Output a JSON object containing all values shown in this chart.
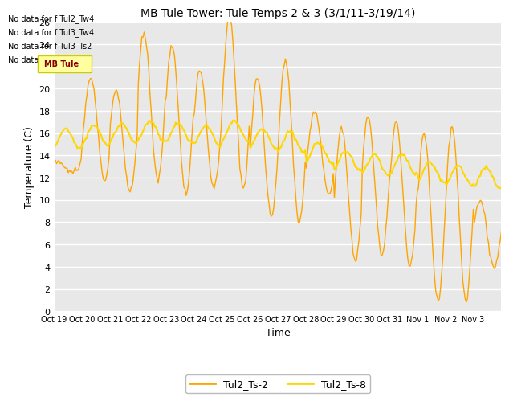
{
  "title": "MB Tule Tower: Tule Temps 2 & 3 (3/1/11-3/19/14)",
  "xlabel": "Time",
  "ylabel": "Temperature (C)",
  "ylim": [
    0,
    26
  ],
  "yticks": [
    0,
    2,
    4,
    6,
    8,
    10,
    12,
    14,
    16,
    18,
    20,
    22,
    24,
    26
  ],
  "x_labels": [
    "Oct 19",
    "Oct 20",
    "Oct 21",
    "Oct 22",
    "Oct 23",
    "Oct 24",
    "Oct 25",
    "Oct 26",
    "Oct 27",
    "Oct 28",
    "Oct 29",
    "Oct 30",
    "Oct 31",
    "Nov 1",
    "Nov 2",
    "Nov 3"
  ],
  "color_ts2": "#FFA500",
  "color_ts8": "#FFD700",
  "legend_labels": [
    "Tul2_Ts-2",
    "Tul2_Ts-8"
  ],
  "no_data_text": [
    "No data for f Tul2_Tw4",
    "No data for f Tul3_Tw4",
    "No data for f Tul3_Ts2",
    "No data for f Tul3_Ts5"
  ],
  "bg_color": "#E8E8E8",
  "title_fontsize": 10,
  "axis_fontsize": 8,
  "day_data_ts2": [
    [
      0.1,
      12.5,
      0.6,
      13.5
    ],
    [
      0.3,
      11.8,
      0.7,
      21.0
    ],
    [
      0.2,
      10.8,
      0.7,
      19.8
    ],
    [
      0.2,
      11.8,
      0.65,
      25.0
    ],
    [
      0.2,
      10.5,
      0.65,
      24.0
    ],
    [
      0.2,
      11.0,
      0.65,
      21.5
    ],
    [
      0.25,
      11.0,
      0.65,
      26.5
    ],
    [
      0.25,
      8.5,
      0.6,
      21.0
    ],
    [
      0.25,
      8.0,
      0.65,
      22.5
    ],
    [
      0.3,
      10.5,
      0.65,
      18.0
    ],
    [
      0.25,
      4.5,
      0.65,
      16.5
    ],
    [
      0.2,
      5.0,
      0.65,
      17.5
    ],
    [
      0.2,
      4.0,
      0.65,
      17.0
    ],
    [
      0.2,
      1.0,
      0.65,
      16.0
    ],
    [
      0.2,
      1.0,
      0.65,
      16.5
    ],
    [
      0.2,
      4.0,
      0.65,
      10.0
    ]
  ],
  "ts8_centers": [
    15.5,
    15.8,
    16.0,
    16.2,
    16.0,
    15.8,
    16.2,
    15.5,
    15.2,
    14.2,
    13.5,
    13.2,
    13.2,
    12.5,
    12.2,
    12.0
  ],
  "ts8_amp": 0.9
}
